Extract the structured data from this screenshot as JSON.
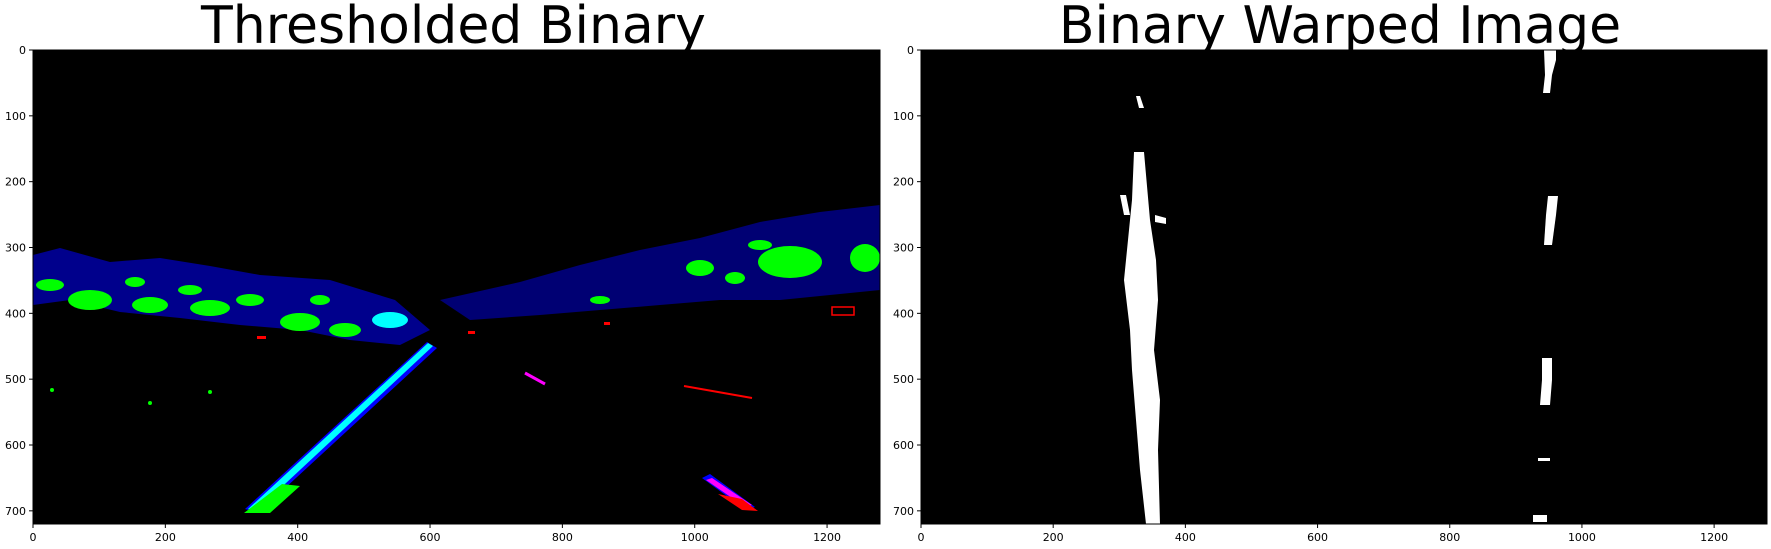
{
  "panels": [
    {
      "title": "Thresholded Binary",
      "x_ticks": [
        "0",
        "200",
        "400",
        "600",
        "800",
        "1000",
        "1200"
      ],
      "y_ticks": [
        "0",
        "100",
        "200",
        "300",
        "400",
        "500",
        "600",
        "700"
      ]
    },
    {
      "title": "Binary Warped Image",
      "x_ticks": [
        "0",
        "200",
        "400",
        "600",
        "800",
        "1000",
        "1200"
      ],
      "y_ticks": [
        "0",
        "100",
        "200",
        "300",
        "400",
        "500",
        "600",
        "700"
      ]
    }
  ],
  "image_extent": {
    "width": 1280,
    "height": 720
  },
  "colors": {
    "background": "#000000",
    "green": "#00ff00",
    "blue": "#0000ff",
    "cyan": "#00ffff",
    "red": "#ff0000",
    "magenta": "#ff00ff",
    "white": "#ffffff"
  }
}
